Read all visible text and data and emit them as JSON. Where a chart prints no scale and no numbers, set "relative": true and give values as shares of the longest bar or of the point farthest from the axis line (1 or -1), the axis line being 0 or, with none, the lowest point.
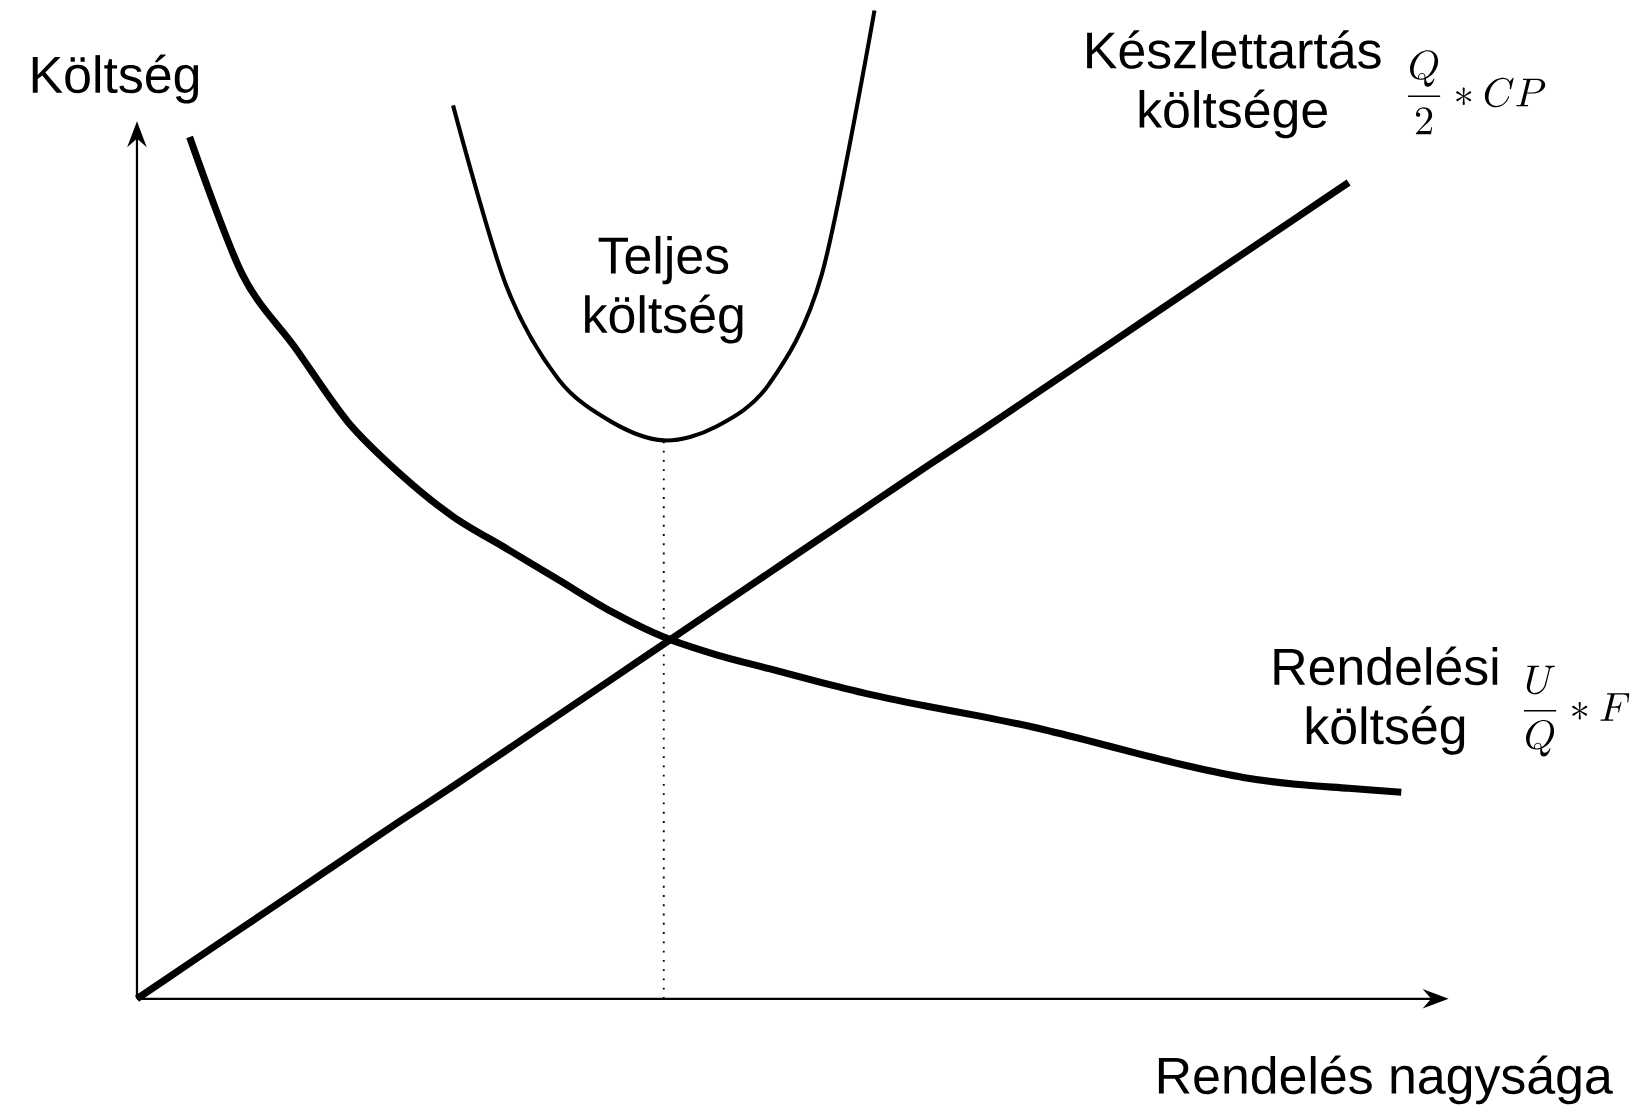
{
  "chart_data": {
    "type": "line",
    "relative": true,
    "xlabel": "Rendelés nagysága",
    "ylabel": "Költség",
    "categories": [
      null,
      null,
      null,
      null,
      null,
      null,
      null,
      null,
      null,
      null,
      null,
      null,
      null,
      null,
      null,
      null,
      null,
      null,
      null,
      null,
      null,
      null,
      null,
      null,
      null,
      null
    ],
    "series": [
      {
        "name": "Teljes költség",
        "color": "#000000",
        "values": [
          null,
          null,
          null,
          null,
          null,
          null,
          0.904,
          0.723,
          0.627,
          0.584,
          0.565,
          0.579,
          0.622,
          0.733,
          1,
          null,
          null,
          null,
          null,
          null,
          null,
          null,
          null,
          null,
          null,
          null
        ]
      },
      {
        "name": "Készlettartás költsége",
        "color": "#000000",
        "values": [
          0,
          0.036,
          0.072,
          0.108,
          0.144,
          0.18,
          0.215,
          0.251,
          0.287,
          0.323,
          0.359,
          0.395,
          0.431,
          0.467,
          0.503,
          0.539,
          0.574,
          0.61,
          0.646,
          0.682,
          0.718,
          0.754,
          0.79,
          0.826,
          null,
          null
        ]
      },
      {
        "name": "Rendelési költség",
        "color": "#000000",
        "values": [
          null,
          0.872,
          0.733,
          0.659,
          0.584,
          0.531,
          0.488,
          0.456,
          0.424,
          0.392,
          0.366,
          0.348,
          0.334,
          0.32,
          0.307,
          0.296,
          0.286,
          0.275,
          0.262,
          0.248,
          0.235,
          0.224,
          0.217,
          0.213,
          0.209,
          null
        ]
      }
    ],
    "annotations": [
      "\\frac{Q}{2}*CP",
      "\\frac{U}{Q}*F"
    ]
  }
}
